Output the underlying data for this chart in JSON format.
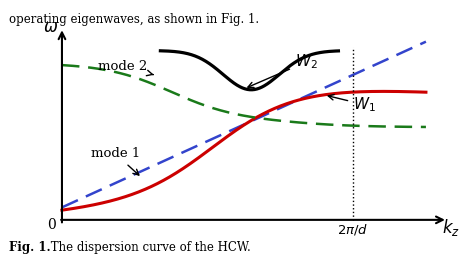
{
  "xlabel": "$k_z$",
  "ylabel": "$\\omega$",
  "caption_bold": "Fig. 1.",
  "caption_rest": " The dispersion curve of the HCW.",
  "header_text": "operating eigenwaves, as shown in Fig. 1.",
  "vline_x": 0.8,
  "background_color": "#ffffff",
  "mode1_color": "#cc0000",
  "mode2_color": "#1a7a1a",
  "blue_dashed_color": "#3344cc",
  "black_curve_color": "#000000",
  "figsize": [
    4.74,
    2.65
  ],
  "dpi": 100
}
